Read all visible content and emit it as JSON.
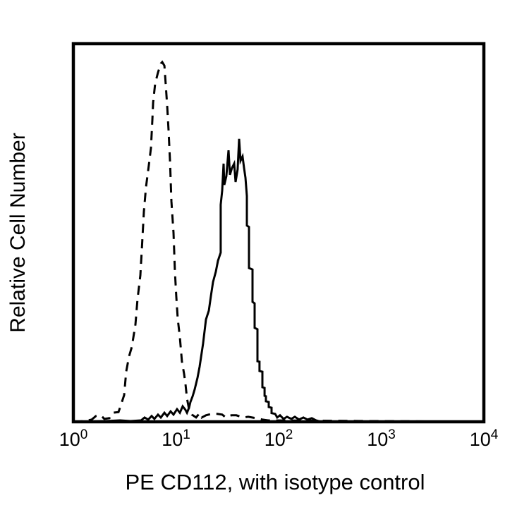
{
  "colors": {
    "foreground": "#000000",
    "background": "#ffffff"
  },
  "chart_data": {
    "type": "line",
    "subtype": "flow-cytometry-histogram-overlay",
    "title": "",
    "xlabel": "PE CD112, with isotype control",
    "ylabel": "Relative Cell Number",
    "x_scale": "log10",
    "x_tick_base": "10",
    "x_tick_exponents": [
      "0",
      "1",
      "2",
      "3",
      "4"
    ],
    "xlim_exponents": [
      0,
      4
    ],
    "ylim": [
      0,
      105
    ],
    "grid": false,
    "legend": "none",
    "series": [
      {
        "id": "isotype-control",
        "name": "Isotype control",
        "line_style": "dashed",
        "color": "#000000",
        "peak_log10_x": 0.87,
        "peak_height": 100,
        "points": [
          [
            0,
            0
          ],
          [
            0.11,
            0.2
          ],
          [
            0.179,
            0.6
          ],
          [
            0.22,
            1.6
          ],
          [
            0.268,
            1.8
          ],
          [
            0.302,
            0.8
          ],
          [
            0.351,
            1.0
          ],
          [
            0.385,
            2.5
          ],
          [
            0.44,
            2.7
          ],
          [
            0.454,
            3.9
          ],
          [
            0.495,
            7.4
          ],
          [
            0.515,
            13.9
          ],
          [
            0.543,
            18.2
          ],
          [
            0.57,
            20.8
          ],
          [
            0.605,
            27.0
          ],
          [
            0.625,
            33.9
          ],
          [
            0.653,
            40.7
          ],
          [
            0.667,
            47.6
          ],
          [
            0.687,
            58.4
          ],
          [
            0.708,
            65.2
          ],
          [
            0.735,
            71.1
          ],
          [
            0.756,
            76.0
          ],
          [
            0.77,
            83.8
          ],
          [
            0.777,
            88.7
          ],
          [
            0.797,
            94.0
          ],
          [
            0.825,
            97.0
          ],
          [
            0.852,
            99.5
          ],
          [
            0.866,
            99.9
          ],
          [
            0.887,
            98.9
          ],
          [
            0.9,
            93.6
          ],
          [
            0.914,
            87.8
          ],
          [
            0.928,
            80.9
          ],
          [
            0.942,
            72.1
          ],
          [
            0.955,
            61.3
          ],
          [
            0.976,
            52.5
          ],
          [
            0.99,
            41.7
          ],
          [
            1.003,
            34.9
          ],
          [
            1.017,
            28.6
          ],
          [
            1.038,
            23.5
          ],
          [
            1.058,
            16.8
          ],
          [
            1.079,
            13.3
          ],
          [
            1.093,
            10.4
          ],
          [
            1.107,
            6.5
          ],
          [
            1.127,
            3.5
          ],
          [
            1.155,
            2.0
          ],
          [
            1.196,
            1.2
          ],
          [
            1.23,
            2.4
          ],
          [
            1.251,
            1.2
          ],
          [
            1.292,
            1.8
          ],
          [
            1.347,
            2.2
          ],
          [
            1.402,
            2.2
          ],
          [
            1.45,
            2.0
          ],
          [
            1.485,
            1.2
          ],
          [
            1.54,
            1.8
          ],
          [
            1.588,
            1.8
          ],
          [
            1.656,
            1.2
          ],
          [
            1.704,
            1.4
          ],
          [
            1.78,
            1.0
          ],
          [
            1.842,
            0.6
          ],
          [
            1.897,
            0.4
          ],
          [
            4,
            0
          ]
        ]
      },
      {
        "id": "pe-cd112",
        "name": "PE CD112",
        "line_style": "solid",
        "color": "#000000",
        "peak_log10_x": 1.62,
        "peak_height": 78.6,
        "points": [
          [
            0,
            0
          ],
          [
            0.316,
            0.2
          ],
          [
            0.454,
            0.4
          ],
          [
            0.557,
            0.2
          ],
          [
            0.66,
            0.4
          ],
          [
            0.694,
            1.2
          ],
          [
            0.729,
            0.6
          ],
          [
            0.763,
            1.6
          ],
          [
            0.79,
            0.8
          ],
          [
            0.825,
            2.0
          ],
          [
            0.852,
            1.2
          ],
          [
            0.887,
            2.5
          ],
          [
            0.914,
            1.6
          ],
          [
            0.948,
            2.9
          ],
          [
            0.976,
            2.0
          ],
          [
            1.01,
            3.5
          ],
          [
            1.038,
            2.5
          ],
          [
            1.065,
            4.3
          ],
          [
            1.093,
            3.3
          ],
          [
            1.107,
            2.5
          ],
          [
            1.127,
            3.9
          ],
          [
            1.141,
            5.5
          ],
          [
            1.162,
            7.1
          ],
          [
            1.182,
            9.0
          ],
          [
            1.21,
            12.3
          ],
          [
            1.23,
            15.3
          ],
          [
            1.264,
            21.7
          ],
          [
            1.292,
            28.4
          ],
          [
            1.32,
            30.9
          ],
          [
            1.34,
            34.9
          ],
          [
            1.361,
            38.8
          ],
          [
            1.388,
            41.7
          ],
          [
            1.409,
            44.7
          ],
          [
            1.436,
            47.0
          ],
          [
            1.436,
            60.3
          ],
          [
            1.45,
            64.2
          ],
          [
            1.464,
            71.7
          ],
          [
            1.471,
            65.8
          ],
          [
            1.491,
            68.2
          ],
          [
            1.512,
            75.4
          ],
          [
            1.526,
            68.6
          ],
          [
            1.546,
            70.5
          ],
          [
            1.567,
            71.7
          ],
          [
            1.581,
            66.6
          ],
          [
            1.601,
            70.1
          ],
          [
            1.615,
            78.6
          ],
          [
            1.629,
            72.5
          ],
          [
            1.649,
            73.7
          ],
          [
            1.663,
            70.5
          ],
          [
            1.677,
            67.8
          ],
          [
            1.691,
            62.7
          ],
          [
            1.691,
            54.5
          ],
          [
            1.711,
            54.1
          ],
          [
            1.711,
            42.7
          ],
          [
            1.746,
            42.3
          ],
          [
            1.746,
            33.3
          ],
          [
            1.766,
            32.9
          ],
          [
            1.766,
            26.1
          ],
          [
            1.794,
            25.7
          ],
          [
            1.794,
            16.8
          ],
          [
            1.814,
            16.7
          ],
          [
            1.814,
            14.1
          ],
          [
            1.842,
            13.9
          ],
          [
            1.842,
            9.6
          ],
          [
            1.863,
            9.4
          ],
          [
            1.863,
            7.2
          ],
          [
            1.876,
            7.1
          ],
          [
            1.876,
            5.7
          ],
          [
            1.904,
            5.5
          ],
          [
            1.904,
            4.1
          ],
          [
            1.931,
            3.9
          ],
          [
            1.931,
            2.4
          ],
          [
            1.966,
            2.2
          ],
          [
            1.986,
            1.2
          ],
          [
            2.014,
            1.8
          ],
          [
            2.048,
            0.8
          ],
          [
            2.082,
            1.4
          ],
          [
            2.124,
            0.8
          ],
          [
            2.158,
            1.4
          ],
          [
            2.199,
            0.6
          ],
          [
            2.241,
            1.2
          ],
          [
            2.282,
            0.6
          ],
          [
            2.323,
            1.0
          ],
          [
            2.364,
            0.4
          ],
          [
            2.412,
            0
          ],
          [
            4,
            0
          ]
        ]
      }
    ]
  }
}
